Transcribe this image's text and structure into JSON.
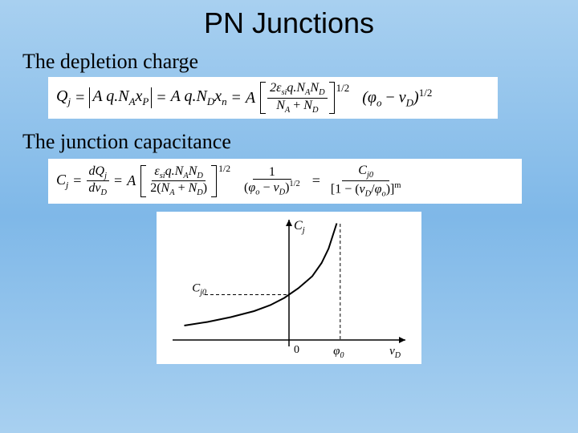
{
  "title": "PN Junctions",
  "subheading1": "The depletion charge",
  "subheading2": "The junction capacitance",
  "eq1": {
    "lhs": "Q",
    "lhs_sub": "j",
    "abs_expr": "A q.N",
    "abs_sub1": "A",
    "abs_var": "x",
    "abs_varsub": "P",
    "mid_expr": "A q.N",
    "mid_sub": "D",
    "mid_var": "x",
    "mid_varsub": "n",
    "A": "A",
    "frac_num_pre": "2",
    "frac_num_eps": "ε",
    "frac_num_eps_sub": "si",
    "frac_num_rest": "q.N",
    "frac_num_sub1": "A",
    "frac_num_N2": "N",
    "frac_num_sub2": "D",
    "frac_den_N1": "N",
    "frac_den_sub1": "A",
    "frac_den_plus": " + ",
    "frac_den_N2": "N",
    "frac_den_sub2": "D",
    "exp1": "1/2",
    "paren_phi": "φ",
    "paren_phi_sub": "o",
    "paren_minus": " − ",
    "paren_v": "ν",
    "paren_v_sub": "D",
    "exp2": "1/2"
  },
  "eq2": {
    "lhs": "C",
    "lhs_sub": "j",
    "deriv_num_d": "d",
    "deriv_num_Q": "Q",
    "deriv_num_sub": "j",
    "deriv_den_d": "d",
    "deriv_den_v": "ν",
    "deriv_den_sub": "D",
    "A": "A",
    "frac_num_eps": "ε",
    "frac_num_eps_sub": "si",
    "frac_num_rest": "q.N",
    "frac_num_sub1": "A",
    "frac_num_N2": "N",
    "frac_num_sub2": "D",
    "frac_den_pre": "2(",
    "frac_den_N1": "N",
    "frac_den_sub1": "A",
    "frac_den_plus": " + ",
    "frac_den_N2": "N",
    "frac_den_sub2": "D",
    "frac_den_post": ")",
    "exp1": "1/2",
    "mid_num": "1",
    "mid_den_open": "(",
    "mid_den_phi": "φ",
    "mid_den_phi_sub": "o",
    "mid_den_minus": " − ",
    "mid_den_v": "ν",
    "mid_den_v_sub": "D",
    "mid_den_close": ")",
    "mid_den_exp": "1/2",
    "rhs_num_C": "C",
    "rhs_num_sub": "j0",
    "rhs_den_open": "[1 − (",
    "rhs_den_v": "ν",
    "rhs_den_v_sub": "D",
    "rhs_den_slash": "/",
    "rhs_den_phi": "φ",
    "rhs_den_phi_sub": "o",
    "rhs_den_close": ")]",
    "rhs_den_exp": "m"
  },
  "graph": {
    "ylabel": "C",
    "ylabel_sub": "j",
    "ytick": "C",
    "ytick_sub": "j0",
    "xzero": "0",
    "xtick_phi": "φ",
    "xtick_sub": "0",
    "xlabel": "ν",
    "xlabel_sub": "D",
    "colors": {
      "bg": "#ffffff",
      "axis": "#000000",
      "curve": "#000000",
      "dash": "#000000"
    },
    "axis_width": 1.5,
    "curve_width": 2,
    "asymptote_x": 0.72,
    "origin_x": 0.5,
    "curve_points": [
      [
        0.05,
        0.88
      ],
      [
        0.15,
        0.85
      ],
      [
        0.25,
        0.81
      ],
      [
        0.35,
        0.76
      ],
      [
        0.42,
        0.71
      ],
      [
        0.48,
        0.65
      ],
      [
        0.54,
        0.57
      ],
      [
        0.6,
        0.47
      ],
      [
        0.64,
        0.36
      ],
      [
        0.67,
        0.24
      ],
      [
        0.69,
        0.12
      ],
      [
        0.705,
        0.03
      ]
    ]
  }
}
